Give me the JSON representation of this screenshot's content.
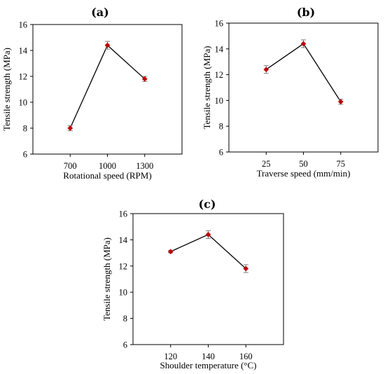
{
  "chart_data": [
    {
      "type": "line",
      "panel_label": "(a)",
      "xlabel": "Rotational speed (RPM)",
      "ylabel": "Tensile strength (MPa)",
      "categories": [
        "700",
        "1000",
        "1300"
      ],
      "yticks": [
        "6",
        "8",
        "10",
        "12",
        "14",
        "16"
      ],
      "ylim": [
        6,
        16
      ],
      "grid": false,
      "series": [
        {
          "values": [
            8.0,
            14.4,
            11.8
          ],
          "errors": [
            0.2,
            0.3,
            0.2
          ]
        }
      ],
      "colors": {
        "line": "#000000",
        "marker": "#c00000",
        "error_bar": "#7f7f7f"
      }
    },
    {
      "type": "line",
      "panel_label": "(b)",
      "xlabel": "Traverse speed (mm/min)",
      "ylabel": "Tensile strength (MPa)",
      "categories": [
        "25",
        "50",
        "75"
      ],
      "yticks": [
        "6",
        "8",
        "10",
        "12",
        "14",
        "16"
      ],
      "ylim": [
        6,
        16
      ],
      "grid": false,
      "series": [
        {
          "values": [
            12.4,
            14.4,
            9.9
          ],
          "errors": [
            0.3,
            0.3,
            0.2
          ]
        }
      ],
      "colors": {
        "line": "#000000",
        "marker": "#c00000",
        "error_bar": "#7f7f7f"
      }
    },
    {
      "type": "line",
      "panel_label": "(c)",
      "xlabel": "Shoulder temperature (°C)",
      "ylabel": "Tensile strength (MPa)",
      "categories": [
        "120",
        "140",
        "160"
      ],
      "yticks": [
        "6",
        "8",
        "10",
        "12",
        "14",
        "16"
      ],
      "ylim": [
        6,
        16
      ],
      "grid": false,
      "series": [
        {
          "values": [
            13.1,
            14.4,
            11.8
          ],
          "errors": [
            0.1,
            0.3,
            0.3
          ]
        }
      ],
      "colors": {
        "line": "#000000",
        "marker": "#c00000",
        "error_bar": "#7f7f7f"
      }
    }
  ]
}
